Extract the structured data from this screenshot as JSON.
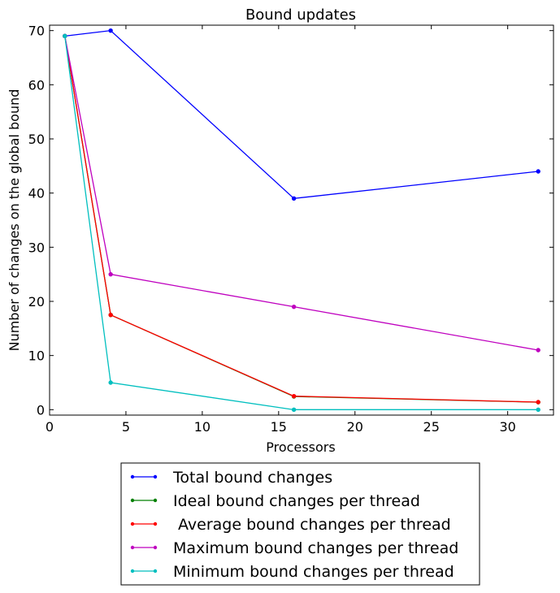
{
  "chart_data": {
    "type": "line",
    "title": "Bound updates",
    "xlabel": "Processors",
    "ylabel": "Number of changes on the global bound",
    "xlim": [
      0,
      33
    ],
    "ylim": [
      -1,
      71
    ],
    "x_ticks": [
      0,
      5,
      10,
      15,
      20,
      25,
      30
    ],
    "y_ticks": [
      0,
      10,
      20,
      30,
      40,
      50,
      60,
      70
    ],
    "grid": false,
    "legend_position": "below",
    "x": [
      1,
      4,
      16,
      32
    ],
    "series": [
      {
        "name": "Total bound changes",
        "color": "#0000ff",
        "values": [
          69,
          70,
          39,
          44
        ]
      },
      {
        "name": "Ideal bound changes per thread",
        "color": "#008000",
        "values": [
          69,
          17.5,
          2.44,
          1.38
        ]
      },
      {
        "name": " Average bound changes per thread",
        "color": "#ff0000",
        "values": [
          69,
          17.5,
          2.5,
          1.4
        ]
      },
      {
        "name": "Maximum bound changes per thread",
        "color": "#bf00bf",
        "values": [
          69,
          25,
          19,
          11
        ]
      },
      {
        "name": "Minimum bound changes per thread",
        "color": "#00bfbf",
        "values": [
          69,
          5,
          0,
          0
        ]
      }
    ]
  }
}
